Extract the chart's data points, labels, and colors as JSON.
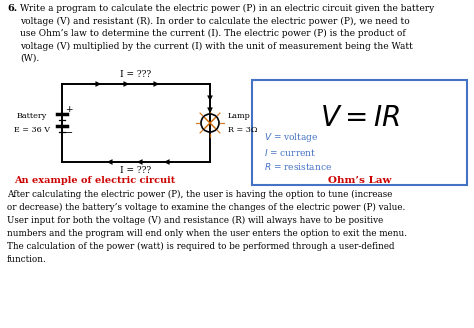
{
  "title_number": "6.",
  "title_text": "Write a program to calculate the electric power (P) in an electric circuit given the battery\nvoltage (V) and resistant (R). In order to calculate the electric power (P), we need to\nuse Ohm’s law to determine the current (I). The electric power (P) is the product of\nvoltage (V) multiplied by the current (I) with the unit of measurement being the Watt\n(W).",
  "circuit_label_top": "I = ???",
  "circuit_label_bottom": "I = ???",
  "battery_label_line1": "Battery",
  "battery_label_line2": "E = 36 V",
  "lamp_label_line1": "Lamp",
  "lamp_label_line2": "R = 3Ω",
  "legend_V": "V = voltage",
  "legend_I": "I = current",
  "legend_R": "R = resistance",
  "caption_left": "An example of electric circuit",
  "caption_right": "Ohm’s Law",
  "body_text": "After calculating the electric power (P), the user is having the option to tune (increase\nor decrease) the battery’s voltage to examine the changes of the electric power (P) value.\nUser input for both the voltage (V) and resistance (R) will always have to be positive\nnumbers and the program will end only when the user enters the option to exit the menu.\nThe calculation of the power (watt) is required to be performed through a user-defined\nfunction.",
  "bg_color": "#ffffff",
  "text_color": "#000000",
  "caption_color": "#cc0000",
  "formula_color": "#000000",
  "legend_color": "#4472c4",
  "box_edge_color": "#4472c4",
  "circuit_line_color": "#000000",
  "lamp_color": "#cc6600"
}
